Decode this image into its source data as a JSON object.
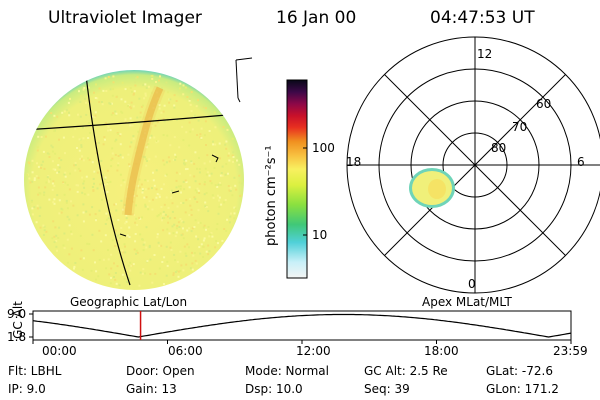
{
  "header": {
    "instrument": "Ultraviolet Imager",
    "date": "16 Jan 00",
    "time": "04:47:53 UT"
  },
  "colorbar": {
    "unit_label": "photon cm⁻²s⁻¹",
    "tick_labels": [
      "100",
      "10"
    ]
  },
  "polar_plot": {
    "mlt_labels": {
      "top": "12",
      "bottom": "0",
      "left": "18",
      "right": "6"
    },
    "lat_labels": [
      "60",
      "70",
      "80"
    ]
  },
  "panel_labels": {
    "left": "Geographic Lat/Lon",
    "right": "Apex MLat/MLT"
  },
  "timeline": {
    "axis_label": "GC Alt",
    "y_ticks": [
      "9.0",
      "1.8"
    ],
    "x_ticks": [
      "00:00",
      "06:00",
      "12:00",
      "18:00",
      "23:59"
    ],
    "marker_time": "04:47:53"
  },
  "info": {
    "flt": "Flt: LBHL",
    "ip": "IP: 9.0",
    "door": "Door: Open",
    "gain": "Gain: 13",
    "mode": "Mode: Normal",
    "dsp": "Dsp:  10.0",
    "gc_alt": "GC Alt: 2.5 Re",
    "seq": "Seq: 39",
    "glat": "GLat: -72.6",
    "glon": "GLon: 171.2"
  },
  "colors": {
    "disk_fill": "#f2f07a",
    "disk_edge": "#5cc8b0",
    "aurora": "#e8b040",
    "marker": "#d01010"
  }
}
